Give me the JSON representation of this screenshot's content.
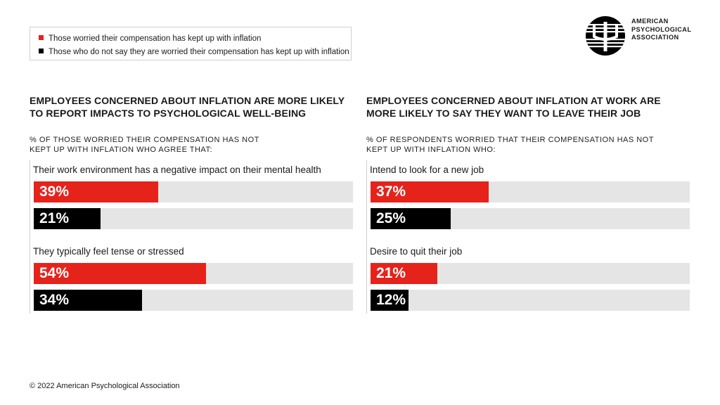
{
  "legend": [
    {
      "label": "Those worried their compensation has kept up with inflation",
      "color": "#e5231b"
    },
    {
      "label": "Those who do not say they are worried their compensation has kept up with inflation",
      "color": "#000000"
    }
  ],
  "logo": {
    "line1": "AMERICAN",
    "line2": "PSYCHOLOGICAL",
    "line3": "ASSOCIATION"
  },
  "chart_data": [
    {
      "type": "bar",
      "orientation": "horizontal",
      "title_line1": "EMPLOYEES CONCERNED ABOUT INFLATION ARE MORE LIKELY",
      "title_line2": "TO REPORT IMPACTS TO PSYCHOLOGICAL WELL-BEING",
      "subtitle_line1": "% OF THOSE WORRIED THEIR COMPENSATION HAS NOT",
      "subtitle_line2": "KEPT UP WITH INFLATION WHO AGREE THAT:",
      "xlim": [
        0,
        100
      ],
      "groups": [
        {
          "question": "Their work environment has a negative impact on their mental health",
          "bars": [
            {
              "value": 39,
              "label": "39%",
              "series": 0
            },
            {
              "value": 21,
              "label": "21%",
              "series": 1
            }
          ]
        },
        {
          "question": "They typically feel tense or stressed",
          "bars": [
            {
              "value": 54,
              "label": "54%",
              "series": 0
            },
            {
              "value": 34,
              "label": "34%",
              "series": 1
            }
          ]
        }
      ]
    },
    {
      "type": "bar",
      "orientation": "horizontal",
      "title_line1": "EMPLOYEES CONCERNED ABOUT INFLATION AT WORK ARE",
      "title_line2": "MORE LIKELY TO SAY THEY WANT TO LEAVE THEIR JOB",
      "subtitle_line1": "% OF RESPONDENTS WORRIED THAT THEIR COMPENSATION HAS NOT",
      "subtitle_line2": "KEPT UP WITH INFLATION WHO:",
      "xlim": [
        0,
        100
      ],
      "groups": [
        {
          "question": "Intend to look for a new job",
          "bars": [
            {
              "value": 37,
              "label": "37%",
              "series": 0
            },
            {
              "value": 25,
              "label": "25%",
              "series": 1
            }
          ]
        },
        {
          "question": "Desire to quit their job",
          "bars": [
            {
              "value": 21,
              "label": "21%",
              "series": 0
            },
            {
              "value": 12,
              "label": "12%",
              "series": 1
            }
          ]
        }
      ]
    }
  ],
  "footer": {
    "copyright": "© 2022 American Psychological Association"
  }
}
